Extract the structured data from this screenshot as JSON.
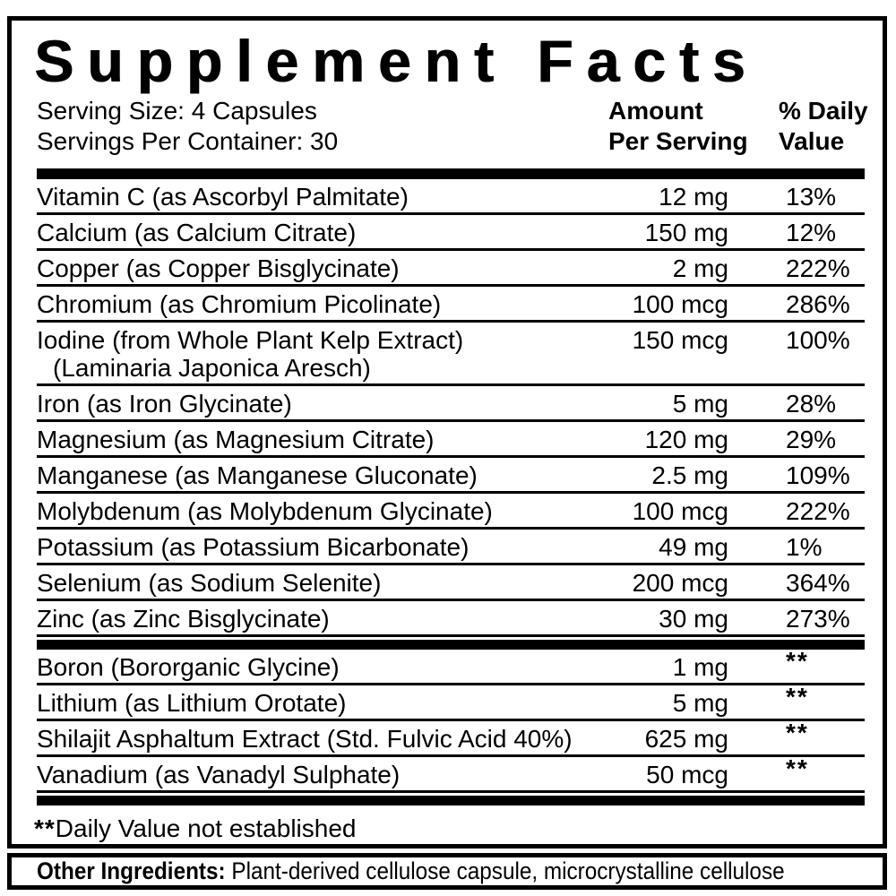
{
  "title": "Supplement Facts",
  "serving": {
    "size": "Serving Size: 4 Capsules",
    "per_container": "Servings Per Container: 30"
  },
  "columns": {
    "amount_line1": "Amount",
    "amount_line2": "Per Serving",
    "daily_line1": "% Daily",
    "daily_line2": "Value"
  },
  "main_rows": [
    {
      "name": "Vitamin C (as Ascorbyl Palmitate)",
      "amount": "12 mg",
      "dv": "13%"
    },
    {
      "name": "Calcium (as Calcium Citrate)",
      "amount": "150 mg",
      "dv": "12%"
    },
    {
      "name": "Copper (as Copper Bisglycinate)",
      "amount": "2 mg",
      "dv": "222%"
    },
    {
      "name": "Chromium (as Chromium Picolinate)",
      "amount": "100 mcg",
      "dv": "286%"
    },
    {
      "name": "Iodine (from Whole Plant Kelp Extract)",
      "name2": "(Laminaria Japonica Aresch)",
      "amount": "150 mcg",
      "dv": "100%"
    },
    {
      "name": "Iron (as Iron Glycinate)",
      "amount": "5 mg",
      "dv": "28%"
    },
    {
      "name": "Magnesium (as Magnesium Citrate)",
      "amount": "120 mg",
      "dv": "29%"
    },
    {
      "name": "Manganese (as Manganese Gluconate)",
      "amount": "2.5 mg",
      "dv": "109%"
    },
    {
      "name": "Molybdenum (as Molybdenum Glycinate)",
      "amount": "100 mcg",
      "dv": "222%"
    },
    {
      "name": "Potassium (as Potassium Bicarbonate)",
      "amount": "49 mg",
      "dv": "1%"
    },
    {
      "name": "Selenium (as Sodium Selenite)",
      "amount": "200 mcg",
      "dv": "364%"
    },
    {
      "name": "Zinc (as Zinc Bisglycinate)",
      "amount": "30 mg",
      "dv": "273%"
    }
  ],
  "secondary_rows": [
    {
      "name": "Boron (Bororganic Glycine)",
      "amount": "1 mg",
      "dv": "**"
    },
    {
      "name": "Lithium (as Lithium Orotate)",
      "amount": "5 mg",
      "dv": "**"
    },
    {
      "name": "Shilajit Asphaltum Extract (Std. Fulvic Acid 40%)",
      "amount": "625 mg",
      "dv": "**"
    },
    {
      "name": "Vanadium (as Vanadyl Sulphate)",
      "amount": "50 mcg",
      "dv": "**"
    }
  ],
  "footnote": {
    "marker": "**",
    "text": "Daily Value not established"
  },
  "other_ingredients": {
    "label": "Other Ingredients:",
    "text": " Plant-derived cellulose capsule, microcrystalline cellulose"
  },
  "colors": {
    "ink": "#000000",
    "background": "#ffffff"
  }
}
